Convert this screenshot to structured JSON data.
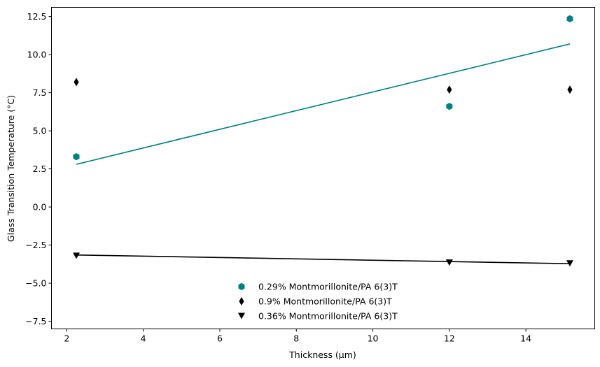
{
  "chart_data": {
    "type": "scatter",
    "title": "",
    "xlabel": "Thickness (μm)",
    "ylabel": "Glass Transition Temperature (°C)",
    "xlim": [
      1.6,
      15.8
    ],
    "ylim": [
      -8.0,
      13.1
    ],
    "xticks": [
      2,
      4,
      6,
      8,
      10,
      12,
      14
    ],
    "xtick_labels": [
      "2",
      "4",
      "6",
      "8",
      "10",
      "12",
      "14"
    ],
    "yticks": [
      -7.5,
      -5.0,
      -2.5,
      0.0,
      2.5,
      5.0,
      7.5,
      10.0,
      12.5
    ],
    "ytick_labels": [
      "−7.5",
      "−5.0",
      "−2.5",
      "0.0",
      "2.5",
      "5.0",
      "7.5",
      "10.0",
      "12.5"
    ],
    "grid": false,
    "legend_position": "lower-center",
    "series": [
      {
        "name": "0.29% Montmorillonite/PA 6(3)T",
        "marker": "hexagon",
        "color": "#008080",
        "x": [
          2.25,
          12.0,
          15.15
        ],
        "y": [
          3.3,
          6.6,
          12.35
        ],
        "fit_line": {
          "x": [
            2.25,
            15.15
          ],
          "y": [
            2.8,
            10.7
          ]
        }
      },
      {
        "name": "0.9% Montmorillonite/PA 6(3)T",
        "marker": "thin-diamond",
        "color": "#000000",
        "x": [
          2.25,
          12.0,
          15.15
        ],
        "y": [
          8.2,
          7.7,
          7.7
        ],
        "fit_line": null
      },
      {
        "name": "0.36% Montmorillonite/PA 6(3)T",
        "marker": "triangle-down",
        "color": "#000000",
        "x": [
          2.25,
          12.0,
          15.15
        ],
        "y": [
          -3.2,
          -3.65,
          -3.7
        ],
        "fit_line": {
          "x": [
            2.25,
            15.15
          ],
          "y": [
            -3.15,
            -3.72
          ]
        }
      }
    ]
  }
}
